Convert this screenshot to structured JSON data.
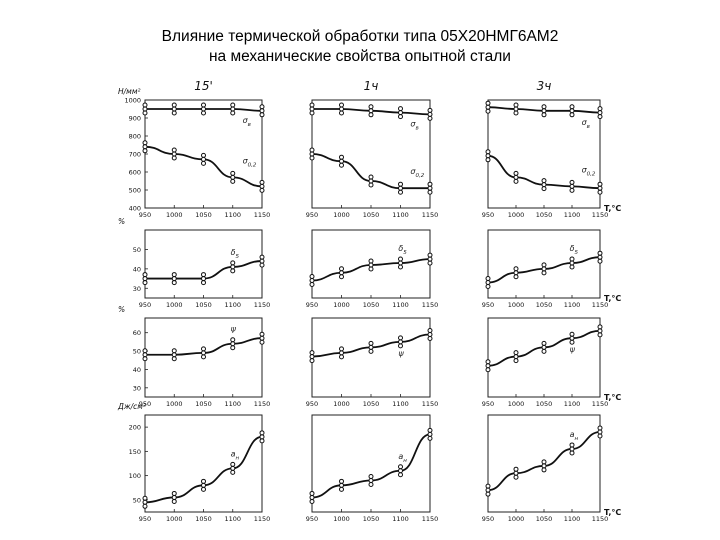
{
  "title_line1": "Влияние термической обработки типа 05Х20НМГ6АМ2",
  "title_line2": "на механические свойства опытной стали",
  "chart_data": {
    "type": "line",
    "x": [
      950,
      1000,
      1050,
      1100,
      1150
    ],
    "x_unit_label": "T,°C",
    "columns": [
      "15'",
      "1ч",
      "3ч"
    ],
    "rows": [
      {
        "unit": "Н/мм²",
        "ticks": [
          400,
          500,
          600,
          700,
          800,
          900,
          1000
        ],
        "ylim": [
          400,
          1000
        ],
        "series": [
          {
            "name": "σв",
            "values": [
              [
                950,
                950,
                950,
                950,
                940
              ],
              [
                950,
                950,
                940,
                930,
                920
              ],
              [
                960,
                950,
                940,
                940,
                930
              ]
            ]
          },
          {
            "name": "σ0,2",
            "values": [
              [
                740,
                700,
                670,
                570,
                520
              ],
              [
                700,
                660,
                550,
                510,
                510
              ],
              [
                690,
                570,
                530,
                520,
                510
              ]
            ]
          }
        ]
      },
      {
        "unit": "%",
        "ticks": [
          30,
          40,
          50
        ],
        "ylim": [
          25,
          60
        ],
        "series": [
          {
            "name": "δ5",
            "values": [
              [
                35,
                35,
                35,
                41,
                44
              ],
              [
                34,
                38,
                42,
                43,
                45
              ],
              [
                33,
                38,
                40,
                43,
                46
              ]
            ]
          }
        ]
      },
      {
        "unit": "%",
        "ticks": [
          30,
          40,
          50,
          60
        ],
        "ylim": [
          25,
          68
        ],
        "series": [
          {
            "name": "ψ",
            "values": [
              [
                48,
                48,
                49,
                54,
                57
              ],
              [
                47,
                49,
                52,
                55,
                59
              ],
              [
                42,
                47,
                52,
                57,
                61
              ]
            ]
          }
        ]
      },
      {
        "unit": "Дж/см²",
        "ticks": [
          50,
          100,
          150,
          200
        ],
        "ylim": [
          25,
          225
        ],
        "series": [
          {
            "name": "aн",
            "values": [
              [
                45,
                55,
                80,
                115,
                180
              ],
              [
                55,
                80,
                90,
                110,
                185
              ],
              [
                70,
                105,
                120,
                155,
                190
              ]
            ]
          }
        ]
      }
    ],
    "grid": false
  }
}
